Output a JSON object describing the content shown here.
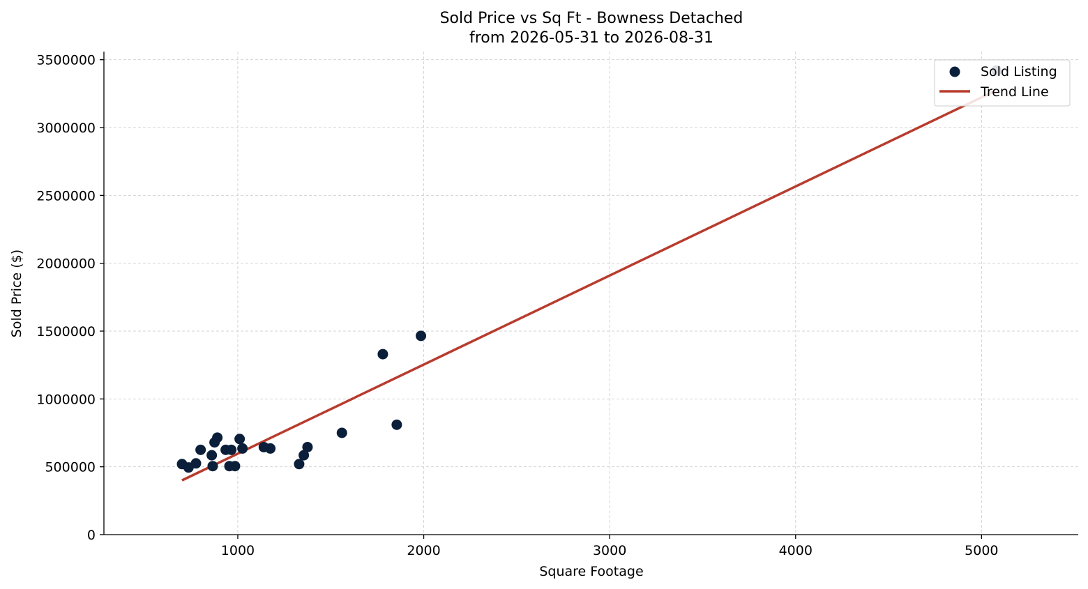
{
  "chart_data": {
    "type": "scatter",
    "title": "Sold Price vs Sq Ft - Bowness Detached",
    "subtitle": "from 2026-05-31 to 2026-08-31",
    "xlabel": "Square Footage",
    "ylabel": "Sold Price ($)",
    "xlim": [
      280,
      5520
    ],
    "ylim": [
      0,
      3560000
    ],
    "xticks": [
      1000,
      2000,
      3000,
      4000,
      5000
    ],
    "yticks": [
      0,
      500000,
      1000000,
      1500000,
      2000000,
      2500000,
      3000000,
      3500000
    ],
    "grid": true,
    "legend_position": "top-right",
    "colors": {
      "points": "#0b1f3a",
      "trend": "#b83c2e",
      "grid": "#d3d3d3"
    },
    "series": [
      {
        "name": "Sold Listing",
        "kind": "scatter",
        "points": [
          [
            700,
            520000
          ],
          [
            735,
            495000
          ],
          [
            775,
            525000
          ],
          [
            800,
            625000
          ],
          [
            860,
            585000
          ],
          [
            865,
            505000
          ],
          [
            875,
            680000
          ],
          [
            890,
            715000
          ],
          [
            935,
            625000
          ],
          [
            955,
            505000
          ],
          [
            965,
            625000
          ],
          [
            985,
            505000
          ],
          [
            1010,
            705000
          ],
          [
            1025,
            635000
          ],
          [
            1140,
            645000
          ],
          [
            1175,
            635000
          ],
          [
            1330,
            520000
          ],
          [
            1355,
            585000
          ],
          [
            1375,
            645000
          ],
          [
            1560,
            750000
          ],
          [
            1780,
            1330000
          ],
          [
            1855,
            810000
          ],
          [
            1985,
            1465000
          ],
          [
            5080,
            3420000
          ]
        ]
      },
      {
        "name": "Trend Line",
        "kind": "line",
        "points": [
          [
            700,
            400000
          ],
          [
            5080,
            3275000
          ]
        ]
      }
    ]
  }
}
